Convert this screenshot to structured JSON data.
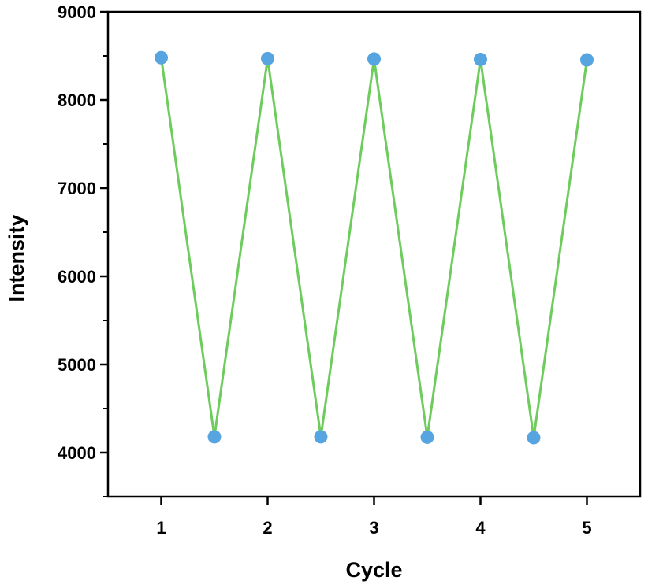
{
  "chart_data": {
    "type": "line",
    "title": "",
    "xlabel": "Cycle",
    "ylabel": "Intensity",
    "xlim": [
      0.5,
      5.5
    ],
    "ylim": [
      3500,
      9000
    ],
    "x_ticks": [
      1,
      2,
      3,
      4,
      5
    ],
    "y_ticks": [
      4000,
      5000,
      6000,
      7000,
      8000,
      9000
    ],
    "grid": false,
    "legend": "none",
    "series": [
      {
        "x": [
          1,
          1.5,
          2,
          2.5,
          3,
          3.5,
          4,
          4.5,
          5
        ],
        "y": [
          8480,
          4180,
          8470,
          4180,
          8465,
          4175,
          8460,
          4170,
          8455
        ],
        "line_color": "#6dcc5c",
        "marker_color": "#56a5e0"
      }
    ]
  }
}
